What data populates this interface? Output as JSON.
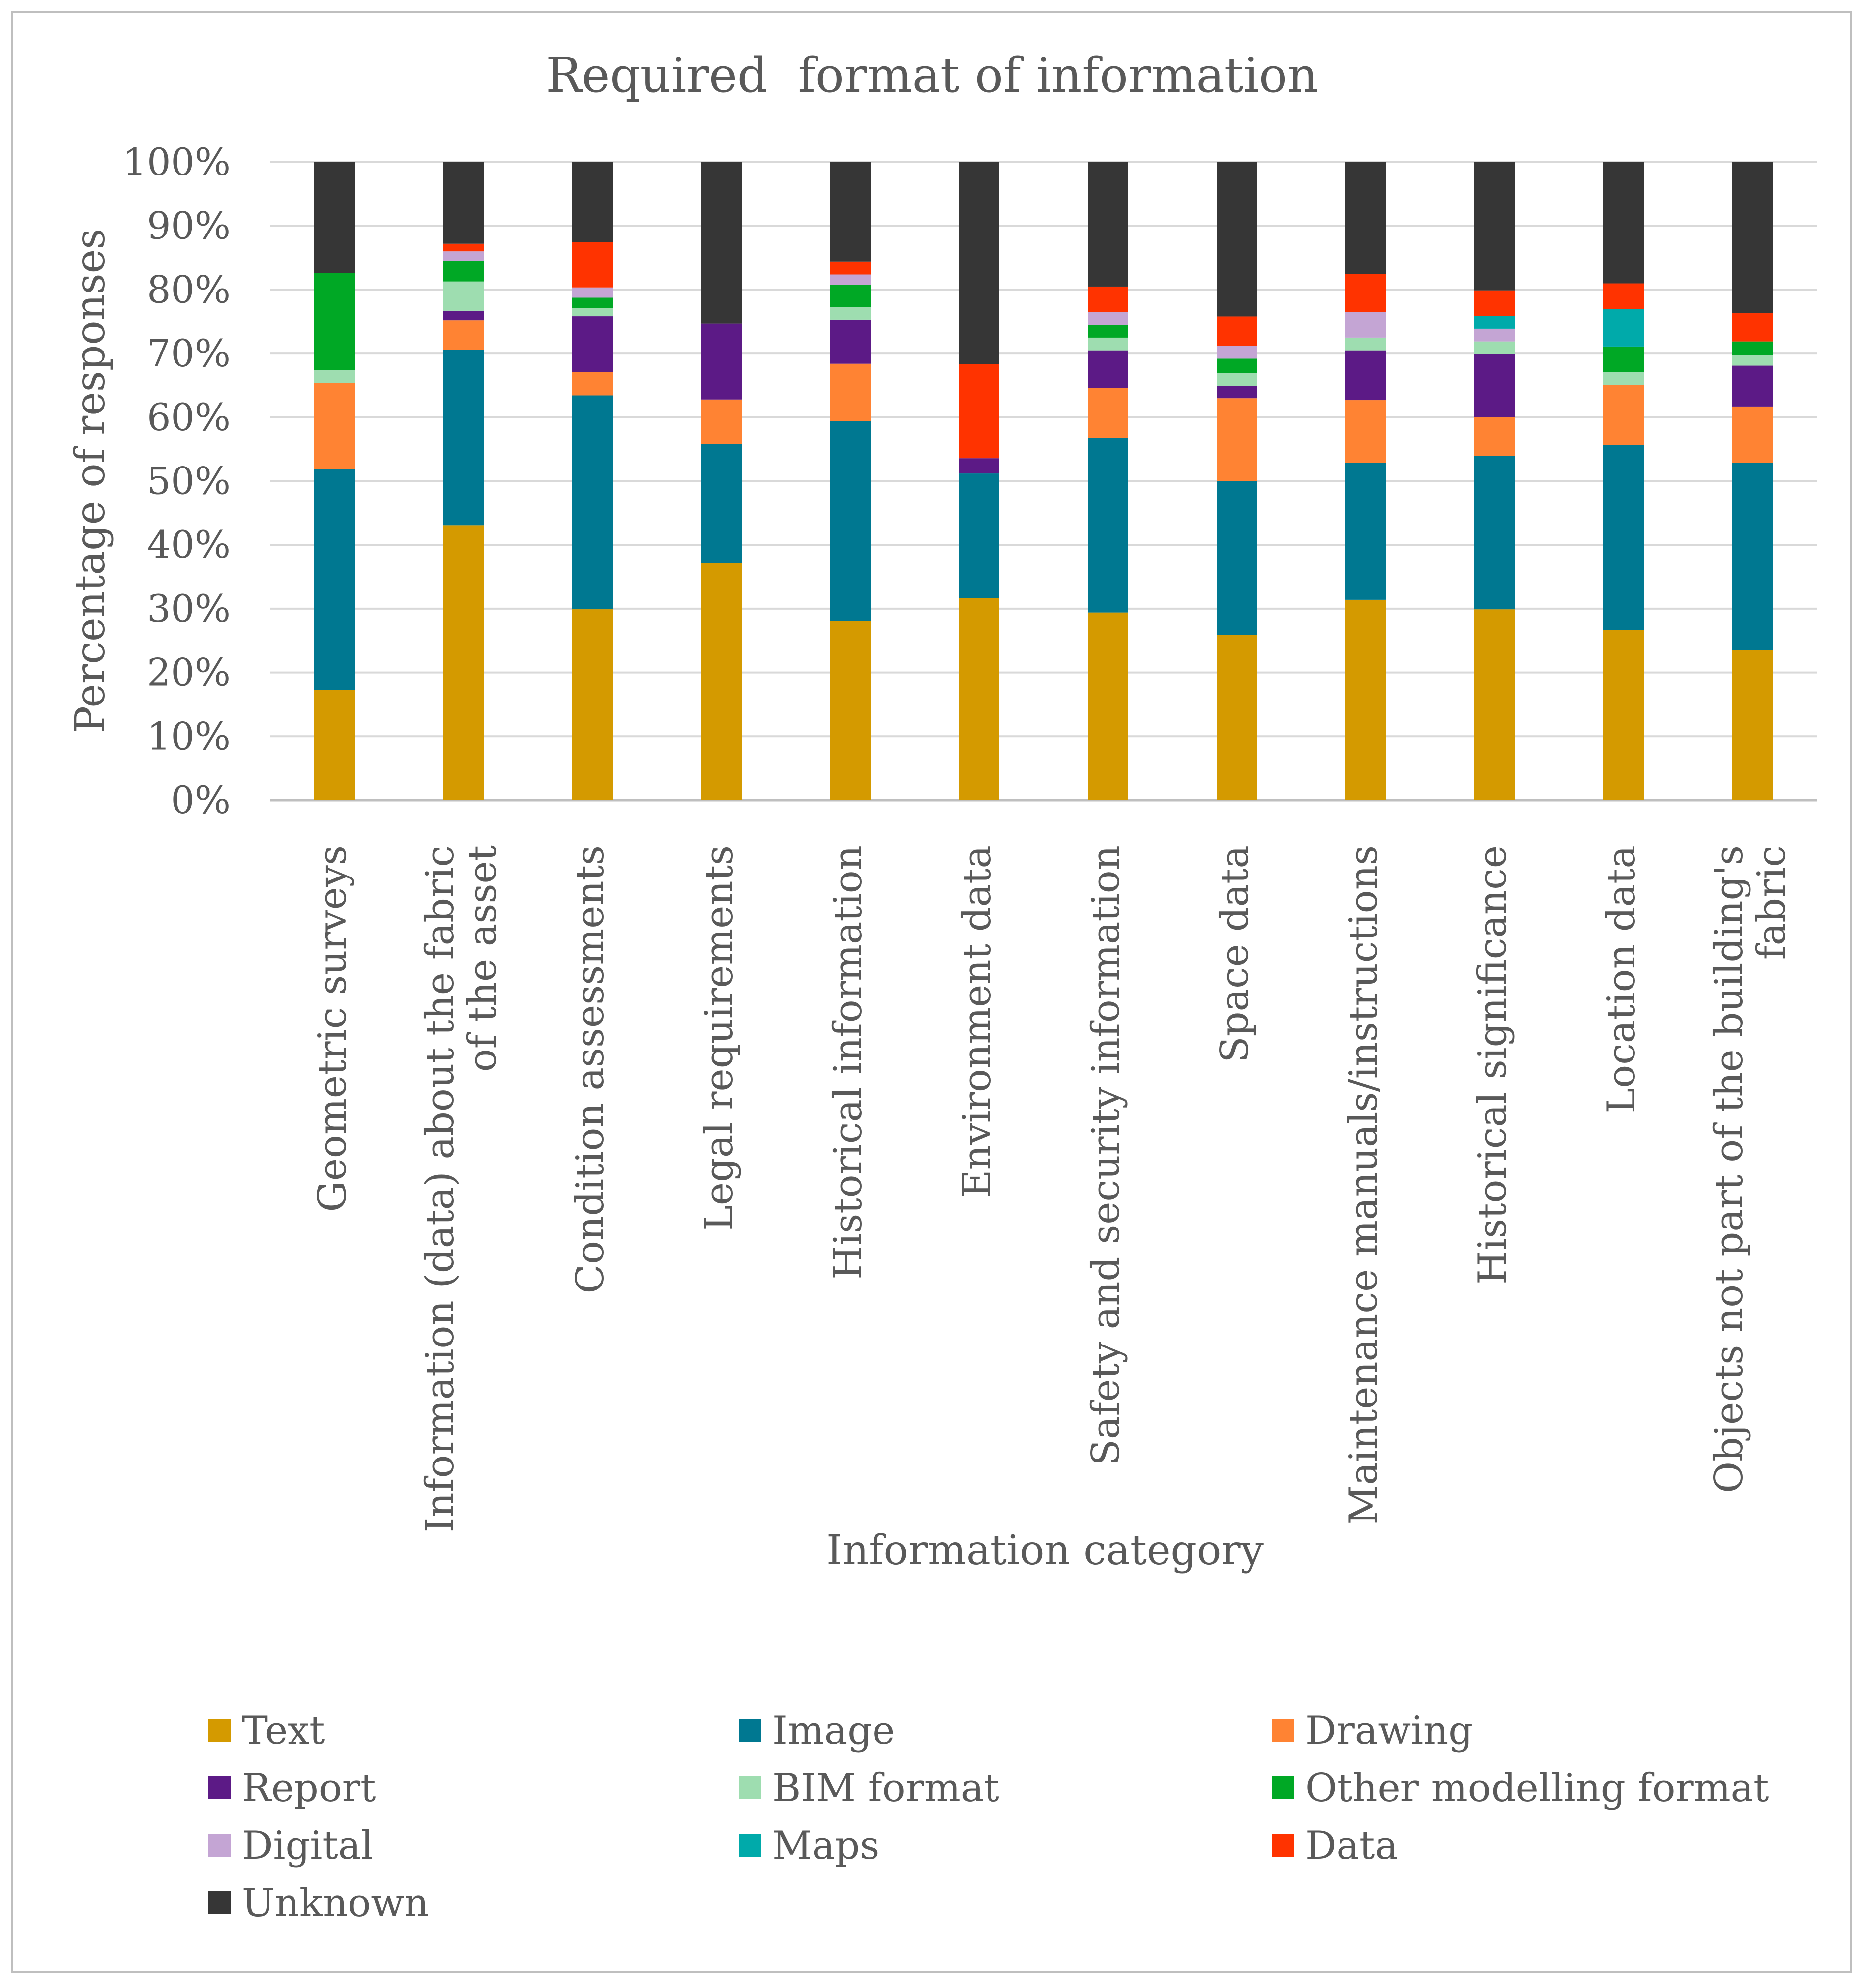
{
  "chart_data": {
    "type": "bar",
    "stacked": true,
    "title": "Required  format of information",
    "xlabel": "Information category",
    "ylabel": "Percentage of responses",
    "ylim": [
      0,
      100
    ],
    "y_ticks": [
      "0%",
      "10%",
      "20%",
      "30%",
      "40%",
      "50%",
      "60%",
      "70%",
      "80%",
      "90%",
      "100%"
    ],
    "gridlines": true,
    "legend_position": "bottom",
    "categories": [
      [
        "Geometric surveys"
      ],
      [
        "Information (data) about the fabric",
        "of the asset"
      ],
      [
        "Condition assessments"
      ],
      [
        "Legal requirements"
      ],
      [
        "Historical information"
      ],
      [
        "Environment data"
      ],
      [
        "Safety and security information"
      ],
      [
        "Space data"
      ],
      [
        "Maintenance manuals/instructions"
      ],
      [
        "Historical significance"
      ],
      [
        "Location data"
      ],
      [
        "Objects not part of the building's",
        "fabric"
      ]
    ],
    "series": [
      {
        "name": "Text",
        "color": "#D49A00",
        "values": [
          17.3,
          43.1,
          29.7,
          37.2,
          28.1,
          31.7,
          29.4,
          25.9,
          31.4,
          29.9,
          26.7,
          23.5
        ]
      },
      {
        "name": "Image",
        "color": "#007891",
        "values": [
          34.6,
          27.5,
          33.3,
          18.6,
          31.3,
          19.5,
          27.4,
          24.1,
          21.5,
          24.1,
          29.0,
          29.4
        ]
      },
      {
        "name": "Drawing",
        "color": "#FF8333",
        "values": [
          13.5,
          4.6,
          3.6,
          7.0,
          9.0,
          0,
          7.8,
          13.0,
          9.8,
          6.0,
          9.4,
          8.8
        ]
      },
      {
        "name": "Report",
        "color": "#5C1A86",
        "values": [
          0,
          1.5,
          8.7,
          11.9,
          6.9,
          2.4,
          5.9,
          1.9,
          7.8,
          9.9,
          0,
          6.4
        ]
      },
      {
        "name": "BIM format",
        "color": "#9EDDB0",
        "values": [
          2.0,
          4.6,
          1.3,
          0,
          2.0,
          0,
          2.0,
          2.0,
          2.0,
          2.0,
          2.0,
          1.6
        ]
      },
      {
        "name": "Other modelling format",
        "color": "#00A825",
        "values": [
          15.2,
          3.2,
          1.6,
          0,
          3.5,
          0,
          2.0,
          2.3,
          0,
          0,
          4.0,
          2.2
        ]
      },
      {
        "name": "Digital",
        "color": "#C4A5D4",
        "values": [
          0,
          1.5,
          1.6,
          0,
          1.6,
          0,
          2.0,
          2.0,
          4.0,
          2.0,
          0,
          0
        ]
      },
      {
        "name": "Maps",
        "color": "#00AAAA",
        "values": [
          0,
          0,
          0,
          0,
          0,
          0,
          0,
          0,
          0,
          2.0,
          5.9,
          0
        ]
      },
      {
        "name": "Data",
        "color": "#FF3300",
        "values": [
          0,
          1.2,
          7.0,
          0,
          2.0,
          14.7,
          4.0,
          4.6,
          6.0,
          4.0,
          4.0,
          4.4
        ]
      },
      {
        "name": "Unknown",
        "color": "#363636",
        "values": [
          17.4,
          12.8,
          12.5,
          25.3,
          15.6,
          31.7,
          19.5,
          24.2,
          17.5,
          20.1,
          19.0,
          23.7
        ]
      }
    ]
  }
}
